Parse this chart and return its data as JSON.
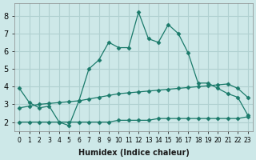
{
  "title": "",
  "xlabel": "Humidex (Indice chaleur)",
  "ylabel": "",
  "bg_color": "#cde8e8",
  "grid_color": "#b0d0d0",
  "line_color": "#1a7a6a",
  "x_ticks": [
    0,
    1,
    2,
    3,
    4,
    5,
    6,
    7,
    8,
    9,
    10,
    11,
    12,
    13,
    14,
    15,
    16,
    17,
    18,
    19,
    20,
    21,
    22,
    23
  ],
  "ylim": [
    1.5,
    8.7
  ],
  "xlim": [
    -0.5,
    23.5
  ],
  "series1_x": [
    0,
    1,
    2,
    3,
    4,
    5,
    6,
    7,
    8,
    9,
    10,
    11,
    12,
    13,
    14,
    15,
    16,
    17,
    18,
    19,
    20,
    21,
    22,
    23
  ],
  "series1_y": [
    3.9,
    3.1,
    2.8,
    2.9,
    2.0,
    1.8,
    3.2,
    5.0,
    5.5,
    6.5,
    6.2,
    6.2,
    8.2,
    6.7,
    6.5,
    7.5,
    7.0,
    5.9,
    4.2,
    4.2,
    3.9,
    3.6,
    3.4,
    2.4
  ],
  "series2_x": [
    0,
    1,
    2,
    3,
    4,
    5,
    6,
    7,
    8,
    9,
    10,
    11,
    12,
    13,
    14,
    15,
    16,
    17,
    18,
    19,
    20,
    21,
    22,
    23
  ],
  "series2_y": [
    2.8,
    2.9,
    3.0,
    3.05,
    3.1,
    3.15,
    3.2,
    3.3,
    3.4,
    3.5,
    3.6,
    3.65,
    3.7,
    3.75,
    3.8,
    3.85,
    3.9,
    3.95,
    4.0,
    4.05,
    4.1,
    4.15,
    3.9,
    3.4
  ],
  "series3_x": [
    0,
    1,
    2,
    3,
    4,
    5,
    6,
    7,
    8,
    9,
    10,
    11,
    12,
    13,
    14,
    15,
    16,
    17,
    18,
    19,
    20,
    21,
    22,
    23
  ],
  "series3_y": [
    2.0,
    2.0,
    2.0,
    2.0,
    2.0,
    2.0,
    2.0,
    2.0,
    2.0,
    2.0,
    2.1,
    2.1,
    2.1,
    2.1,
    2.2,
    2.2,
    2.2,
    2.2,
    2.2,
    2.2,
    2.2,
    2.2,
    2.2,
    2.3
  ]
}
